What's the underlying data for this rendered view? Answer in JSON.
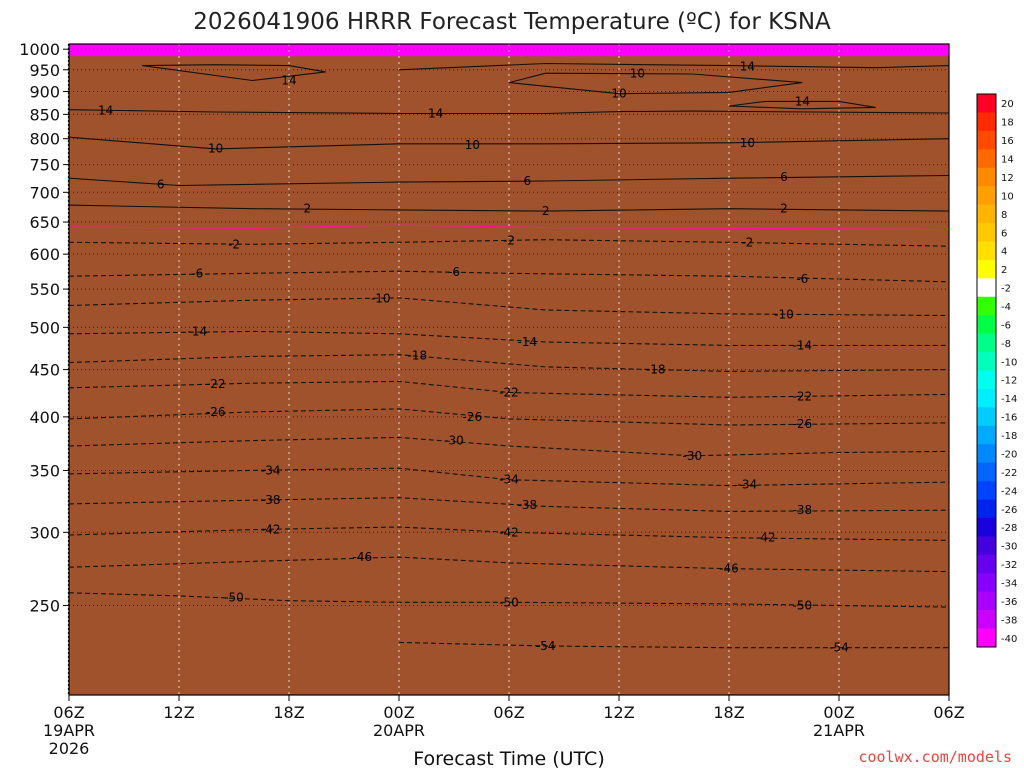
{
  "chart_data": {
    "type": "heatmap",
    "title": "2026041906 HRRR Forecast Temperature (ºC) for KSNA",
    "xlabel": "Forecast Time (UTC)",
    "ylabel": "",
    "x_ticks": [
      {
        "hour": 0,
        "line1": "06Z",
        "line2": "19APR",
        "line3": "2026"
      },
      {
        "hour": 6,
        "line1": "12Z",
        "line2": "",
        "line3": ""
      },
      {
        "hour": 12,
        "line1": "18Z",
        "line2": "",
        "line3": ""
      },
      {
        "hour": 18,
        "line1": "00Z",
        "line2": "20APR",
        "line3": ""
      },
      {
        "hour": 24,
        "line1": "06Z",
        "line2": "",
        "line3": ""
      },
      {
        "hour": 30,
        "line1": "12Z",
        "line2": "",
        "line3": ""
      },
      {
        "hour": 36,
        "line1": "18Z",
        "line2": "",
        "line3": ""
      },
      {
        "hour": 42,
        "line1": "00Z",
        "line2": "21APR",
        "line3": ""
      },
      {
        "hour": 48,
        "line1": "06Z",
        "line2": "",
        "line3": ""
      }
    ],
    "xlim": [
      0,
      48
    ],
    "y_ticks": [
      250,
      300,
      350,
      400,
      450,
      500,
      550,
      600,
      650,
      700,
      750,
      800,
      850,
      900,
      950,
      1000
    ],
    "ylim": [
      1013,
      200
    ],
    "y_scale": "log",
    "unit": "ºC",
    "colorbar_ticks": [
      20,
      18,
      16,
      14,
      12,
      10,
      8,
      6,
      4,
      2,
      -2,
      -4,
      -6,
      -8,
      -10,
      -12,
      -14,
      -16,
      -18,
      -20,
      -22,
      -24,
      -26,
      -28,
      -30,
      -32,
      -34,
      -36,
      -38,
      -40
    ],
    "colorbar_colors": [
      "#ff0026",
      "#ff2a00",
      "#ff4a00",
      "#ff6a00",
      "#ff8a00",
      "#ffa000",
      "#ffb400",
      "#ffc800",
      "#ffe000",
      "#ffff00",
      "#ffffff",
      "#33ff00",
      "#00ff44",
      "#00ff88",
      "#00ffbb",
      "#00ffee",
      "#00eeff",
      "#00ccff",
      "#00aaff",
      "#0088ff",
      "#0066ff",
      "#0044ff",
      "#0022ee",
      "#1a00dd",
      "#4400dd",
      "#6600ee",
      "#8800ff",
      "#aa00ff",
      "#cc00ff",
      "#ff00ff"
    ],
    "surface_color": "#a0522d",
    "temperature_profile": [
      {
        "p": 200,
        "t": -56
      },
      {
        "p": 250,
        "t": -51
      },
      {
        "p": 300,
        "t": -43
      },
      {
        "p": 350,
        "t": -35
      },
      {
        "p": 400,
        "t": -26
      },
      {
        "p": 450,
        "t": -20
      },
      {
        "p": 500,
        "t": -14
      },
      {
        "p": 550,
        "t": -9
      },
      {
        "p": 600,
        "t": -5
      },
      {
        "p": 650,
        "t": 0
      },
      {
        "p": 700,
        "t": 5
      },
      {
        "p": 750,
        "t": 8
      },
      {
        "p": 800,
        "t": 10
      },
      {
        "p": 850,
        "t": 13
      },
      {
        "p": 900,
        "t": 14
      },
      {
        "p": 950,
        "t": 16
      },
      {
        "p": 1000,
        "t": 17
      }
    ],
    "contours": [
      {
        "level": "-54",
        "dashed": true,
        "points": [
          [
            18,
            228
          ],
          [
            26,
            226
          ],
          [
            36,
            225
          ],
          [
            48,
            225
          ]
        ],
        "labels": [
          [
            26,
            226
          ],
          [
            42,
            225
          ]
        ]
      },
      {
        "level": "-50",
        "dashed": true,
        "points": [
          [
            0,
            258
          ],
          [
            6,
            256
          ],
          [
            12,
            253
          ],
          [
            18,
            252
          ],
          [
            24,
            252
          ],
          [
            36,
            251
          ],
          [
            48,
            249
          ]
        ],
        "labels": [
          [
            9,
            255
          ],
          [
            24,
            252
          ],
          [
            40,
            250
          ]
        ]
      },
      {
        "level": "-46",
        "dashed": true,
        "points": [
          [
            0,
            275
          ],
          [
            10,
            279
          ],
          [
            18,
            282
          ],
          [
            24,
            278
          ],
          [
            36,
            274
          ],
          [
            48,
            272
          ]
        ],
        "labels": [
          [
            16,
            282
          ],
          [
            36,
            274
          ]
        ]
      },
      {
        "level": "-42",
        "dashed": true,
        "points": [
          [
            0,
            298
          ],
          [
            10,
            302
          ],
          [
            18,
            304
          ],
          [
            24,
            300
          ],
          [
            36,
            296
          ],
          [
            48,
            294
          ]
        ],
        "labels": [
          [
            11,
            302
          ],
          [
            24,
            300
          ],
          [
            38,
            296
          ]
        ]
      },
      {
        "level": "-38",
        "dashed": true,
        "points": [
          [
            0,
            322
          ],
          [
            10,
            325
          ],
          [
            18,
            327
          ],
          [
            26,
            320
          ],
          [
            36,
            316
          ],
          [
            48,
            317
          ]
        ],
        "labels": [
          [
            11,
            325
          ],
          [
            25,
            321
          ],
          [
            40,
            317
          ]
        ]
      },
      {
        "level": "-34",
        "dashed": true,
        "points": [
          [
            0,
            347
          ],
          [
            10,
            350
          ],
          [
            18,
            352
          ],
          [
            24,
            342
          ],
          [
            36,
            337
          ],
          [
            48,
            340
          ]
        ],
        "labels": [
          [
            11,
            350
          ],
          [
            24,
            342
          ],
          [
            37,
            338
          ]
        ]
      },
      {
        "level": "-30",
        "dashed": true,
        "points": [
          [
            0,
            372
          ],
          [
            10,
            377
          ],
          [
            18,
            380
          ],
          [
            24,
            372
          ],
          [
            34,
            363
          ],
          [
            42,
            366
          ],
          [
            48,
            367
          ]
        ],
        "labels": [
          [
            21,
            377
          ],
          [
            34,
            363
          ]
        ]
      },
      {
        "level": "-26",
        "dashed": true,
        "points": [
          [
            0,
            398
          ],
          [
            10,
            405
          ],
          [
            18,
            408
          ],
          [
            24,
            398
          ],
          [
            36,
            392
          ],
          [
            48,
            394
          ]
        ],
        "labels": [
          [
            8,
            405
          ],
          [
            22,
            400
          ],
          [
            40,
            393
          ]
        ]
      },
      {
        "level": "-22",
        "dashed": true,
        "points": [
          [
            0,
            430
          ],
          [
            10,
            435
          ],
          [
            18,
            437
          ],
          [
            24,
            425
          ],
          [
            36,
            420
          ],
          [
            48,
            423
          ]
        ],
        "labels": [
          [
            8,
            434
          ],
          [
            24,
            425
          ],
          [
            40,
            421
          ]
        ]
      },
      {
        "level": "-18",
        "dashed": true,
        "points": [
          [
            0,
            458
          ],
          [
            10,
            465
          ],
          [
            18,
            467
          ],
          [
            26,
            453
          ],
          [
            36,
            448
          ],
          [
            48,
            450
          ]
        ],
        "labels": [
          [
            19,
            466
          ],
          [
            32,
            450
          ]
        ]
      },
      {
        "level": "-14",
        "dashed": true,
        "points": [
          [
            0,
            492
          ],
          [
            10,
            495
          ],
          [
            18,
            492
          ],
          [
            26,
            482
          ],
          [
            36,
            478
          ],
          [
            48,
            478
          ]
        ],
        "labels": [
          [
            7,
            495
          ],
          [
            25,
            482
          ],
          [
            40,
            478
          ]
        ]
      },
      {
        "level": "-10",
        "dashed": true,
        "points": [
          [
            0,
            528
          ],
          [
            10,
            535
          ],
          [
            18,
            538
          ],
          [
            26,
            522
          ],
          [
            36,
            517
          ],
          [
            48,
            515
          ]
        ],
        "labels": [
          [
            17,
            537
          ],
          [
            39,
            516
          ]
        ]
      },
      {
        "level": "-6",
        "dashed": true,
        "points": [
          [
            0,
            568
          ],
          [
            10,
            572
          ],
          [
            18,
            575
          ],
          [
            24,
            572
          ],
          [
            36,
            568
          ],
          [
            48,
            560
          ]
        ],
        "labels": [
          [
            7,
            572
          ],
          [
            21,
            574
          ],
          [
            40,
            564
          ]
        ]
      },
      {
        "level": "-2",
        "dashed": true,
        "points": [
          [
            0,
            618
          ],
          [
            10,
            615
          ],
          [
            18,
            618
          ],
          [
            26,
            622
          ],
          [
            36,
            618
          ],
          [
            48,
            612
          ]
        ],
        "labels": [
          [
            9,
            615
          ],
          [
            24,
            621
          ],
          [
            37,
            618
          ]
        ]
      },
      {
        "level": "",
        "dashed": false,
        "color": "#ff1493",
        "points": [
          [
            0,
            642
          ],
          [
            10,
            640
          ],
          [
            18,
            645
          ],
          [
            26,
            641
          ],
          [
            36,
            640
          ],
          [
            48,
            638
          ]
        ],
        "labels": []
      },
      {
        "level": "2",
        "dashed": false,
        "points": [
          [
            0,
            678
          ],
          [
            10,
            672
          ],
          [
            18,
            670
          ],
          [
            26,
            668
          ],
          [
            36,
            672
          ],
          [
            48,
            668
          ]
        ],
        "labels": [
          [
            13,
            672
          ],
          [
            26,
            668
          ],
          [
            39,
            672
          ]
        ]
      },
      {
        "level": "6",
        "dashed": false,
        "points": [
          [
            0,
            725
          ],
          [
            6,
            712
          ],
          [
            18,
            718
          ],
          [
            26,
            720
          ],
          [
            36,
            725
          ],
          [
            48,
            730
          ]
        ],
        "labels": [
          [
            5,
            714
          ],
          [
            25,
            720
          ],
          [
            39,
            727
          ]
        ]
      },
      {
        "level": "10",
        "dashed": false,
        "points": [
          [
            0,
            803
          ],
          [
            8,
            780
          ],
          [
            18,
            790
          ],
          [
            26,
            790
          ],
          [
            36,
            792
          ],
          [
            48,
            800
          ]
        ],
        "labels": [
          [
            8,
            781
          ],
          [
            22,
            788
          ],
          [
            37,
            792
          ]
        ]
      },
      {
        "level": "14",
        "dashed": false,
        "points": [
          [
            0,
            860
          ],
          [
            8,
            855
          ],
          [
            18,
            852
          ],
          [
            26,
            852
          ],
          [
            30,
            856
          ],
          [
            34,
            857
          ],
          [
            48,
            853
          ]
        ],
        "labels": [
          [
            2,
            858
          ],
          [
            20,
            852
          ]
        ]
      },
      {
        "level": "10",
        "dashed": false,
        "points": [
          [
            24,
            920
          ],
          [
            30,
            895
          ],
          [
            36,
            898
          ],
          [
            40,
            920
          ],
          [
            34,
            940
          ],
          [
            26,
            942
          ],
          [
            24,
            920
          ]
        ],
        "labels": [
          [
            30,
            895
          ],
          [
            31,
            941
          ]
        ]
      },
      {
        "level": "14",
        "dashed": false,
        "points": [
          [
            36,
            868
          ],
          [
            40,
            862
          ],
          [
            44,
            865
          ],
          [
            42,
            878
          ],
          [
            38,
            878
          ],
          [
            36,
            868
          ]
        ],
        "labels": [
          [
            40,
            878
          ]
        ]
      },
      {
        "level": "14",
        "dashed": false,
        "points": [
          [
            4,
            960
          ],
          [
            10,
            925
          ],
          [
            14,
            945
          ],
          [
            12,
            960
          ],
          [
            8,
            962
          ],
          [
            4,
            960
          ]
        ],
        "labels": [
          [
            12,
            925
          ]
        ]
      },
      {
        "level": "14",
        "dashed": false,
        "points": [
          [
            18,
            950
          ],
          [
            26,
            965
          ],
          [
            36,
            960
          ],
          [
            44,
            955
          ],
          [
            48,
            960
          ]
        ],
        "labels": [
          [
            37,
            958
          ]
        ]
      }
    ]
  },
  "credit": "coolwx.com/models"
}
